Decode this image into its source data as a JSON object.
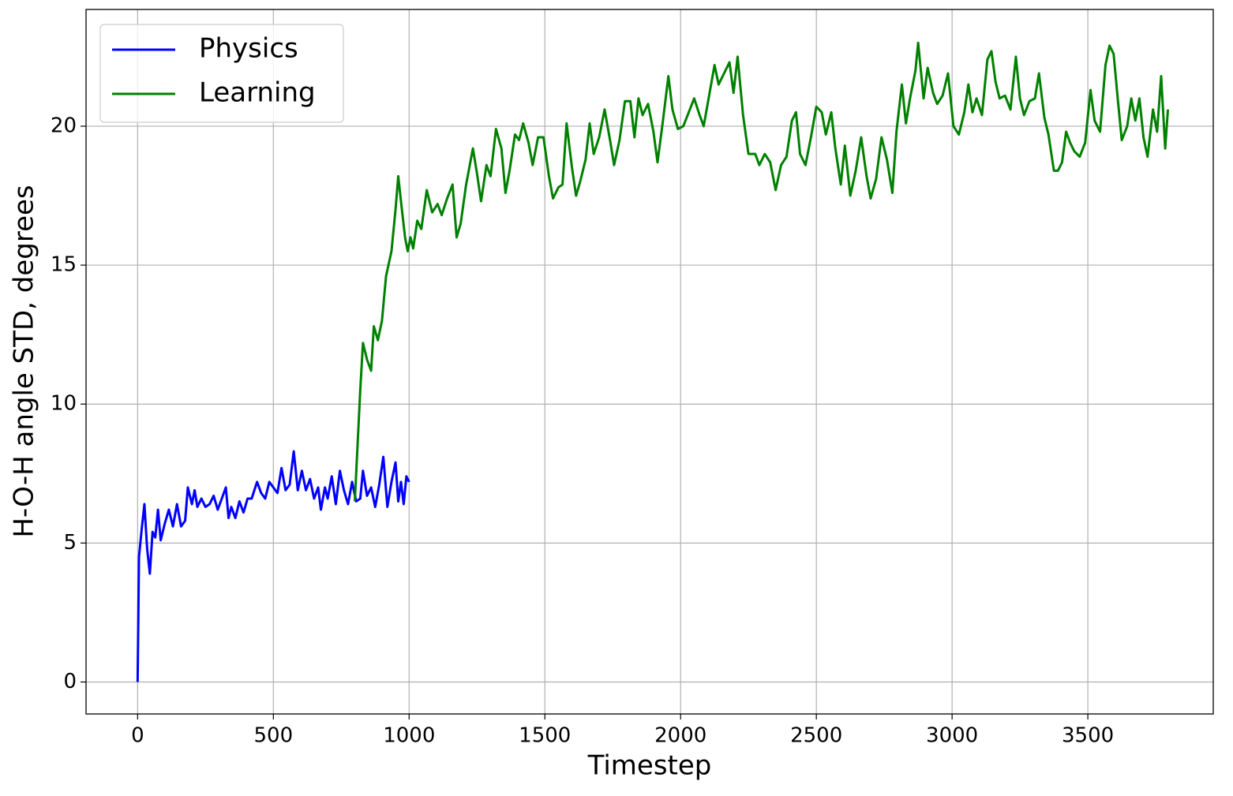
{
  "chart_data": {
    "type": "line",
    "x_label": "Timestep",
    "y_label": "H-O-H angle STD, degrees",
    "xlim": [
      -190,
      3962
    ],
    "ylim": [
      -1.15,
      24.2
    ],
    "xticks": [
      0,
      500,
      1000,
      1500,
      2000,
      2500,
      3000,
      3500
    ],
    "yticks": [
      0,
      5,
      10,
      15,
      20
    ],
    "grid": true,
    "legend": "upper left",
    "series": [
      {
        "name": "Physics",
        "color": "#0000ff",
        "x": [
          0,
          5,
          15,
          25,
          35,
          45,
          55,
          65,
          75,
          85,
          100,
          115,
          130,
          145,
          160,
          175,
          185,
          200,
          210,
          220,
          235,
          250,
          265,
          280,
          295,
          310,
          325,
          335,
          345,
          360,
          375,
          390,
          405,
          420,
          440,
          455,
          470,
          485,
          500,
          515,
          530,
          545,
          560,
          575,
          590,
          605,
          620,
          635,
          650,
          665,
          675,
          690,
          700,
          715,
          730,
          745,
          760,
          775,
          790,
          805,
          820,
          830,
          845,
          860,
          875,
          890,
          905,
          920,
          935,
          950,
          960,
          970,
          980,
          990,
          1000
        ],
        "values": [
          0,
          4.5,
          5.5,
          6.4,
          4.8,
          3.9,
          5.4,
          5.2,
          6.2,
          5.1,
          5.7,
          6.2,
          5.6,
          6.4,
          5.6,
          5.8,
          7.0,
          6.4,
          6.9,
          6.3,
          6.6,
          6.3,
          6.4,
          6.7,
          6.2,
          6.6,
          7.0,
          5.9,
          6.3,
          5.9,
          6.5,
          6.1,
          6.6,
          6.6,
          7.2,
          6.8,
          6.6,
          7.2,
          7.0,
          6.8,
          7.7,
          6.9,
          7.1,
          8.3,
          6.9,
          7.6,
          6.9,
          7.3,
          6.6,
          7.0,
          6.2,
          7.0,
          6.6,
          7.4,
          6.4,
          7.6,
          6.9,
          6.4,
          7.2,
          6.5,
          6.6,
          7.6,
          6.7,
          7.0,
          6.3,
          7.1,
          8.1,
          6.3,
          7.2,
          7.9,
          6.5,
          7.2,
          6.4,
          7.4,
          7.2
        ]
      },
      {
        "name": "Learning",
        "color": "#008000",
        "x": [
          800,
          810,
          820,
          830,
          845,
          860,
          870,
          885,
          900,
          915,
          935,
          950,
          960,
          970,
          985,
          995,
          1005,
          1015,
          1030,
          1045,
          1065,
          1085,
          1105,
          1120,
          1140,
          1160,
          1175,
          1190,
          1210,
          1235,
          1250,
          1265,
          1285,
          1300,
          1320,
          1340,
          1355,
          1370,
          1390,
          1405,
          1420,
          1440,
          1455,
          1475,
          1495,
          1515,
          1530,
          1550,
          1565,
          1580,
          1600,
          1615,
          1630,
          1650,
          1665,
          1680,
          1700,
          1720,
          1740,
          1755,
          1775,
          1795,
          1815,
          1830,
          1845,
          1860,
          1880,
          1900,
          1915,
          1935,
          1955,
          1970,
          1990,
          2010,
          2030,
          2050,
          2070,
          2085,
          2105,
          2125,
          2140,
          2160,
          2180,
          2195,
          2210,
          2230,
          2250,
          2275,
          2290,
          2310,
          2330,
          2350,
          2370,
          2390,
          2410,
          2425,
          2440,
          2460,
          2480,
          2500,
          2520,
          2535,
          2555,
          2570,
          2590,
          2605,
          2625,
          2645,
          2665,
          2685,
          2700,
          2720,
          2740,
          2760,
          2780,
          2795,
          2815,
          2830,
          2845,
          2865,
          2875,
          2895,
          2910,
          2930,
          2945,
          2965,
          2985,
          3005,
          3025,
          3045,
          3060,
          3075,
          3090,
          3110,
          3130,
          3145,
          3160,
          3175,
          3195,
          3215,
          3235,
          3250,
          3265,
          3285,
          3305,
          3320,
          3340,
          3355,
          3375,
          3390,
          3405,
          3420,
          3435,
          3450,
          3470,
          3490,
          3510,
          3525,
          3545,
          3565,
          3580,
          3595,
          3610,
          3625,
          3645,
          3660,
          3675,
          3690,
          3705,
          3720,
          3740,
          3755,
          3770,
          3785,
          3795
        ],
        "values": [
          6.5,
          8.5,
          10.5,
          12.2,
          11.6,
          11.2,
          12.8,
          12.3,
          13.0,
          14.6,
          15.5,
          17.0,
          18.2,
          17.3,
          16.0,
          15.5,
          16.0,
          15.6,
          16.6,
          16.3,
          17.7,
          16.9,
          17.2,
          16.8,
          17.4,
          17.9,
          16.0,
          16.5,
          17.9,
          19.2,
          18.3,
          17.3,
          18.6,
          18.2,
          19.9,
          19.2,
          17.6,
          18.4,
          19.7,
          19.5,
          20.1,
          19.4,
          18.6,
          19.6,
          19.6,
          18.2,
          17.4,
          17.8,
          17.9,
          20.1,
          18.5,
          17.5,
          18.0,
          18.8,
          20.1,
          19.0,
          19.6,
          20.6,
          19.5,
          18.6,
          19.5,
          20.9,
          20.9,
          19.6,
          21.0,
          20.4,
          20.8,
          19.8,
          18.7,
          20.2,
          21.8,
          20.6,
          19.9,
          20.0,
          20.5,
          21.0,
          20.4,
          20.0,
          21.1,
          22.2,
          21.5,
          21.9,
          22.3,
          21.2,
          22.5,
          20.4,
          19.0,
          19.0,
          18.6,
          19.0,
          18.7,
          17.7,
          18.6,
          18.9,
          20.2,
          20.5,
          19.0,
          18.6,
          19.6,
          20.7,
          20.5,
          19.7,
          20.5,
          19.2,
          17.9,
          19.3,
          17.5,
          18.4,
          19.6,
          18.2,
          17.4,
          18.1,
          19.6,
          18.8,
          17.6,
          19.8,
          21.5,
          20.1,
          21.0,
          22.0,
          23.0,
          21.0,
          22.1,
          21.2,
          20.8,
          21.1,
          21.9,
          20.0,
          19.7,
          20.5,
          21.5,
          20.5,
          21.0,
          20.4,
          22.4,
          22.7,
          21.6,
          21.0,
          21.1,
          20.6,
          22.5,
          21.0,
          20.4,
          20.9,
          21.0,
          21.9,
          20.3,
          19.7,
          18.4,
          18.4,
          18.7,
          19.8,
          19.4,
          19.1,
          18.9,
          19.4,
          21.3,
          20.2,
          19.8,
          22.2,
          22.9,
          22.6,
          21.0,
          19.5,
          20.0,
          21.0,
          20.2,
          21.0,
          19.6,
          18.9,
          20.6,
          19.8,
          21.8,
          19.2,
          20.6
        ]
      }
    ]
  }
}
